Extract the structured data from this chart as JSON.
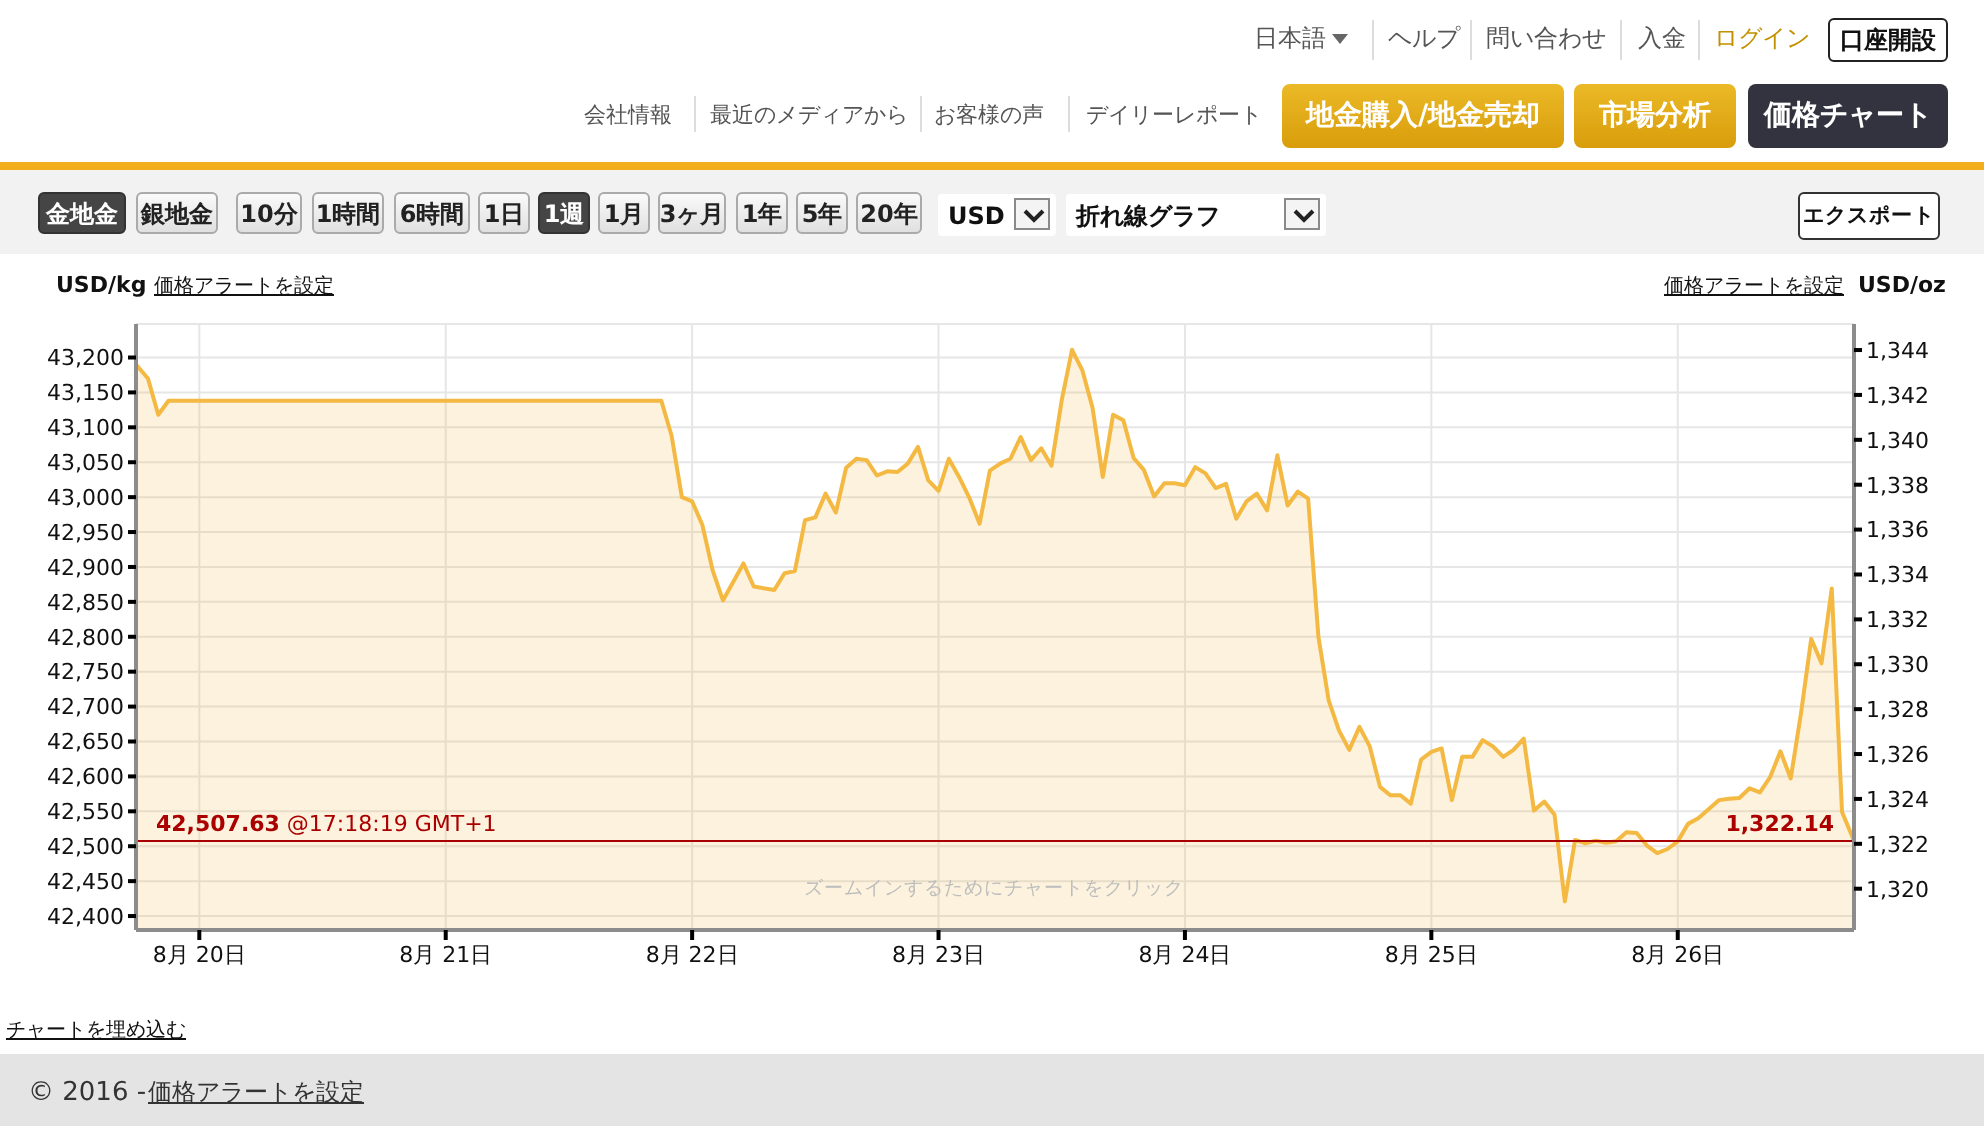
{
  "chart_data": {
    "type": "area",
    "x": [
      "--08-19T17:50",
      "--08-19T19:00",
      "--08-19T20:00",
      "--08-19T21:00",
      "--08-21T21:00",
      "--08-21T22:00",
      "--08-21T23:00",
      "--08-22T00:00",
      "--08-22T01:00",
      "--08-22T02:00",
      "--08-22T03:00",
      "--08-22T05:00",
      "--08-22T06:00",
      "--08-22T08:00",
      "--08-22T09:00",
      "--08-22T10:00",
      "--08-22T11:00",
      "--08-22T12:00",
      "--08-22T13:00",
      "--08-22T14:00",
      "--08-22T15:00",
      "--08-22T16:00",
      "--08-22T17:00",
      "--08-22T18:00",
      "--08-22T19:00",
      "--08-22T20:00",
      "--08-22T21:00",
      "--08-22T22:00",
      "--08-22T23:00",
      "--08-23T00:00",
      "--08-23T01:00",
      "--08-23T02:00",
      "--08-23T03:00",
      "--08-23T04:00",
      "--08-23T05:00",
      "--08-23T06:00",
      "--08-23T07:00",
      "--08-23T08:00",
      "--08-23T09:00",
      "--08-23T10:00",
      "--08-23T11:00",
      "--08-23T12:00",
      "--08-23T13:00",
      "--08-23T14:00",
      "--08-23T15:00",
      "--08-23T16:00",
      "--08-23T17:00",
      "--08-23T18:00",
      "--08-23T19:00",
      "--08-23T20:00",
      "--08-23T21:00",
      "--08-23T22:00",
      "--08-23T23:00",
      "--08-24T00:00",
      "--08-24T01:00",
      "--08-24T02:00",
      "--08-24T03:00",
      "--08-24T04:00",
      "--08-24T05:00",
      "--08-24T06:00",
      "--08-24T07:00",
      "--08-24T08:00",
      "--08-24T09:00",
      "--08-24T10:00",
      "--08-24T11:00",
      "--08-24T12:00",
      "--08-24T13:00",
      "--08-24T14:00",
      "--08-24T15:00",
      "--08-24T16:00",
      "--08-24T17:00",
      "--08-24T18:00",
      "--08-24T19:00",
      "--08-24T20:00",
      "--08-24T21:00",
      "--08-24T22:00",
      "--08-24T23:00",
      "--08-25T00:00",
      "--08-25T01:00",
      "--08-25T02:00",
      "--08-25T03:00",
      "--08-25T04:00",
      "--08-25T05:00",
      "--08-25T06:00",
      "--08-25T07:00",
      "--08-25T08:00",
      "--08-25T09:00",
      "--08-25T10:00",
      "--08-25T11:00",
      "--08-25T12:00",
      "--08-25T13:00",
      "--08-25T14:00",
      "--08-25T15:00",
      "--08-25T16:00",
      "--08-25T17:00",
      "--08-25T18:00",
      "--08-25T19:00",
      "--08-25T20:00",
      "--08-25T21:00",
      "--08-25T22:00",
      "--08-25T23:00",
      "--08-26T00:00",
      "--08-26T01:00",
      "--08-26T02:00",
      "--08-26T03:00",
      "--08-26T04:00",
      "--08-26T05:00",
      "--08-26T06:00",
      "--08-26T07:00",
      "--08-26T08:00",
      "--08-26T09:00",
      "--08-26T10:00",
      "--08-26T11:00",
      "--08-26T12:00",
      "--08-26T13:00",
      "--08-26T14:00",
      "--08-26T15:00",
      "--08-26T16:00",
      "--08-26T17:10"
    ],
    "values": [
      43190,
      43170,
      43118,
      43138,
      43138,
      43088,
      43000,
      42994,
      42960,
      42895,
      42852,
      42905,
      42872,
      42867,
      42891,
      42894,
      42967,
      42971,
      43005,
      42978,
      43042,
      43055,
      43053,
      43031,
      43037,
      43036,
      43048,
      43072,
      43024,
      43009,
      43055,
      43029,
      42999,
      42962,
      43038,
      43048,
      43055,
      43086,
      43053,
      43070,
      43045,
      43139,
      43211,
      43182,
      43128,
      43029,
      43118,
      43110,
      43056,
      43039,
      43001,
      43020,
      43020,
      43017,
      43043,
      43034,
      43013,
      43019,
      42969,
      42994,
      43005,
      42981,
      43060,
      42988,
      43008,
      42998,
      42800,
      42709,
      42666,
      42638,
      42671,
      42643,
      42585,
      42573,
      42573,
      42561,
      42624,
      42635,
      42640,
      42566,
      42628,
      42628,
      42652,
      42643,
      42628,
      42638,
      42654,
      42551,
      42564,
      42545,
      42421,
      42509,
      42504,
      42508,
      42505,
      42507,
      42520,
      42519,
      42501,
      42490,
      42496,
      42507,
      42532,
      42540,
      42553,
      42566,
      42568,
      42569,
      42583,
      42577,
      42599,
      42636,
      42597,
      42690,
      42797,
      42762,
      42869,
      42549,
      42508
    ],
    "color": "#f4b942",
    "ylabel": "USD/kg",
    "y2label": "USD/oz",
    "xlim": [
      "--08-19T17:50",
      "--08-26T17:10"
    ],
    "xticks": [
      {
        "value": "--08-20",
        "label": "8月 20日"
      },
      {
        "value": "--08-21",
        "label": "8月 21日"
      },
      {
        "value": "--08-22",
        "label": "8月 22日"
      },
      {
        "value": "--08-23",
        "label": "8月 23日"
      },
      {
        "value": "--08-24",
        "label": "8月 24日"
      },
      {
        "value": "--08-25",
        "label": "8月 25日"
      },
      {
        "value": "--08-26",
        "label": "8月 26日"
      }
    ],
    "ylim": [
      42380,
      43248
    ],
    "yticks": [
      {
        "value": 42400,
        "label": "42,400"
      },
      {
        "value": 42450,
        "label": "42,450"
      },
      {
        "value": 42500,
        "label": "42,500"
      },
      {
        "value": 42550,
        "label": "42,550"
      },
      {
        "value": 42600,
        "label": "42,600"
      },
      {
        "value": 42650,
        "label": "42,650"
      },
      {
        "value": 42700,
        "label": "42,700"
      },
      {
        "value": 42750,
        "label": "42,750"
      },
      {
        "value": 42800,
        "label": "42,800"
      },
      {
        "value": 42850,
        "label": "42,850"
      },
      {
        "value": 42900,
        "label": "42,900"
      },
      {
        "value": 42950,
        "label": "42,950"
      },
      {
        "value": 43000,
        "label": "43,000"
      },
      {
        "value": 43050,
        "label": "43,050"
      },
      {
        "value": 43100,
        "label": "43,100"
      },
      {
        "value": 43150,
        "label": "43,150"
      },
      {
        "value": 43200,
        "label": "43,200"
      }
    ],
    "y2lim": [
      1318.16,
      1345.16
    ],
    "y2ticks": [
      {
        "value": 1320,
        "label": "1,320"
      },
      {
        "value": 1322,
        "label": "1,322"
      },
      {
        "value": 1324,
        "label": "1,324"
      },
      {
        "value": 1326,
        "label": "1,326"
      },
      {
        "value": 1328,
        "label": "1,328"
      },
      {
        "value": 1330,
        "label": "1,330"
      },
      {
        "value": 1332,
        "label": "1,332"
      },
      {
        "value": 1334,
        "label": "1,334"
      },
      {
        "value": 1336,
        "label": "1,336"
      },
      {
        "value": 1338,
        "label": "1,338"
      },
      {
        "value": 1340,
        "label": "1,340"
      },
      {
        "value": 1342,
        "label": "1,342"
      },
      {
        "value": 1344,
        "label": "1,344"
      }
    ],
    "grid": true,
    "ref_lines": [
      {
        "axis": "y",
        "value": 42507.63,
        "label": "42,507.63 @17:18:19 GMT+1",
        "color": "#aa0000"
      }
    ],
    "annotations": [
      "日本語",
      "ヘルプ",
      "問い合わせ",
      "入金",
      "ログイン",
      "口座開設",
      "会社情報",
      "最近のメディアから",
      "お客様の声",
      "デイリーレポート",
      "地金購入/地金売却",
      "市場分析",
      "価格チャート",
      "金地金",
      "銀地金",
      "10分",
      "1時間",
      "6時間",
      "1日",
      "1週",
      "1月",
      "3ヶ月",
      "1年",
      "5年",
      "20年",
      "USD",
      "折れ線グラフ",
      "エクスポート",
      "価格アラートを設定",
      "価格アラートを設定",
      "ズームインするためにチャートをクリック",
      "チャートを埋め込む",
      "© 2016 -",
      "価格アラートを設定",
      {
        "text": "1,322.14",
        "x": "--08-26T17:10",
        "y": 42507.63
      }
    ]
  }
}
